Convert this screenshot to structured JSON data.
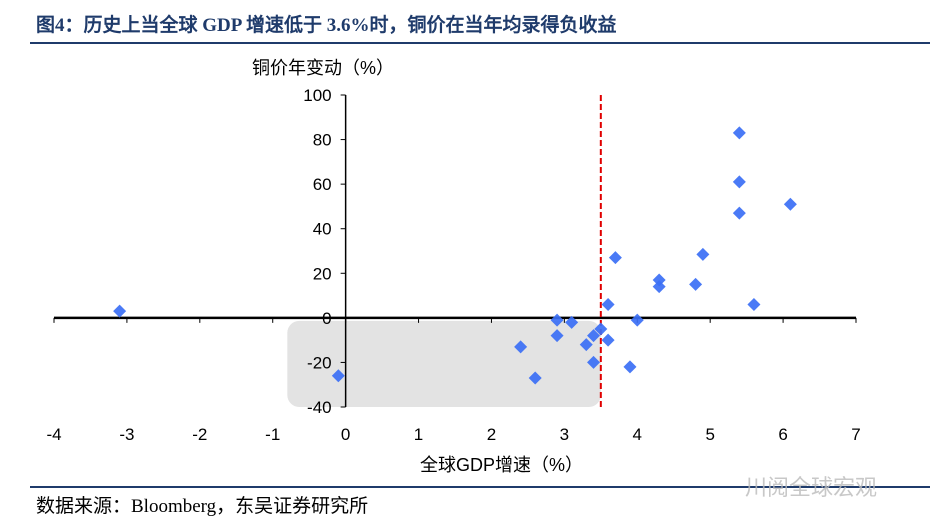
{
  "title": "图4：历史上当全球 GDP 增速低于 3.6%时，铜价在当年均录得负收益",
  "source": "数据来源：Bloomberg，东吴证券研究所",
  "watermark": "川阅全球宏观",
  "chart_data": {
    "type": "scatter",
    "xlabel": "全球GDP增速（%）",
    "ylabel": "铜价年变动（%）",
    "xlim": [
      -4,
      7
    ],
    "ylim": [
      -40,
      100
    ],
    "xticks": [
      -4,
      -3,
      -2,
      -1,
      0,
      1,
      2,
      3,
      4,
      5,
      6,
      7
    ],
    "yticks": [
      -40,
      -20,
      0,
      20,
      40,
      60,
      80,
      100
    ],
    "reference_line": {
      "x": 3.5,
      "color": "#e00000",
      "style": "dashed"
    },
    "shaded_region": {
      "x": [
        -0.8,
        3.5
      ],
      "y": [
        -40,
        0
      ],
      "color": "#e3e3e3"
    },
    "marker_color": "#3b6ff5",
    "points": [
      [
        -3.1,
        3
      ],
      [
        5.4,
        83
      ],
      [
        5.4,
        61
      ],
      [
        5.4,
        47
      ],
      [
        6.1,
        51
      ],
      [
        4.9,
        28.5
      ],
      [
        3.7,
        27
      ],
      [
        4.3,
        17
      ],
      [
        4.3,
        14
      ],
      [
        4.8,
        15
      ],
      [
        5.6,
        6
      ],
      [
        3.6,
        6
      ],
      [
        4.0,
        -1
      ],
      [
        2.9,
        -1
      ],
      [
        3.1,
        -2
      ],
      [
        2.9,
        -8
      ],
      [
        3.5,
        -5
      ],
      [
        3.4,
        -8
      ],
      [
        3.3,
        -12
      ],
      [
        3.6,
        -10
      ],
      [
        2.4,
        -13
      ],
      [
        3.4,
        -20
      ],
      [
        3.9,
        -22
      ],
      [
        2.6,
        -27
      ],
      [
        -0.1,
        -26
      ]
    ]
  }
}
